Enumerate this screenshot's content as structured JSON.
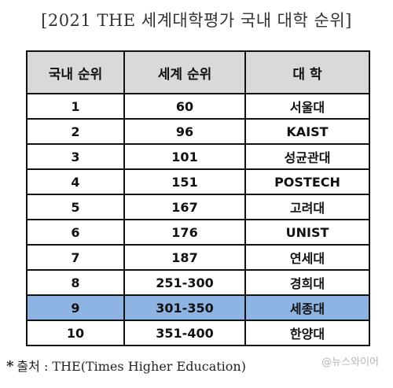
{
  "title": "[2021 THE 세계대학평가 국내 대학 순위]",
  "table": {
    "headers": [
      "국내 순위",
      "세계 순위",
      "대 학"
    ],
    "rows": [
      {
        "domestic": "1",
        "world": "60",
        "university": "서울대"
      },
      {
        "domestic": "2",
        "world": "96",
        "university": "KAIST"
      },
      {
        "domestic": "3",
        "world": "101",
        "university": "성균관대"
      },
      {
        "domestic": "4",
        "world": "151",
        "university": "POSTECH"
      },
      {
        "domestic": "5",
        "world": "167",
        "university": "고려대"
      },
      {
        "domestic": "6",
        "world": "176",
        "university": "UNIST"
      },
      {
        "domestic": "7",
        "world": "187",
        "university": "연세대"
      },
      {
        "domestic": "8",
        "world": "251-300",
        "university": "경희대"
      },
      {
        "domestic": "9",
        "world": "301-350",
        "university": "세종대"
      },
      {
        "domestic": "10",
        "world": "351-400",
        "university": "한양대"
      }
    ],
    "highlight_color": "#8eb4e3",
    "header_color": "#d9d9d9"
  },
  "source": {
    "mark": "*",
    "text": "출처 : THE(Times Higher Education)"
  },
  "watermark": "@뉴스와이어"
}
